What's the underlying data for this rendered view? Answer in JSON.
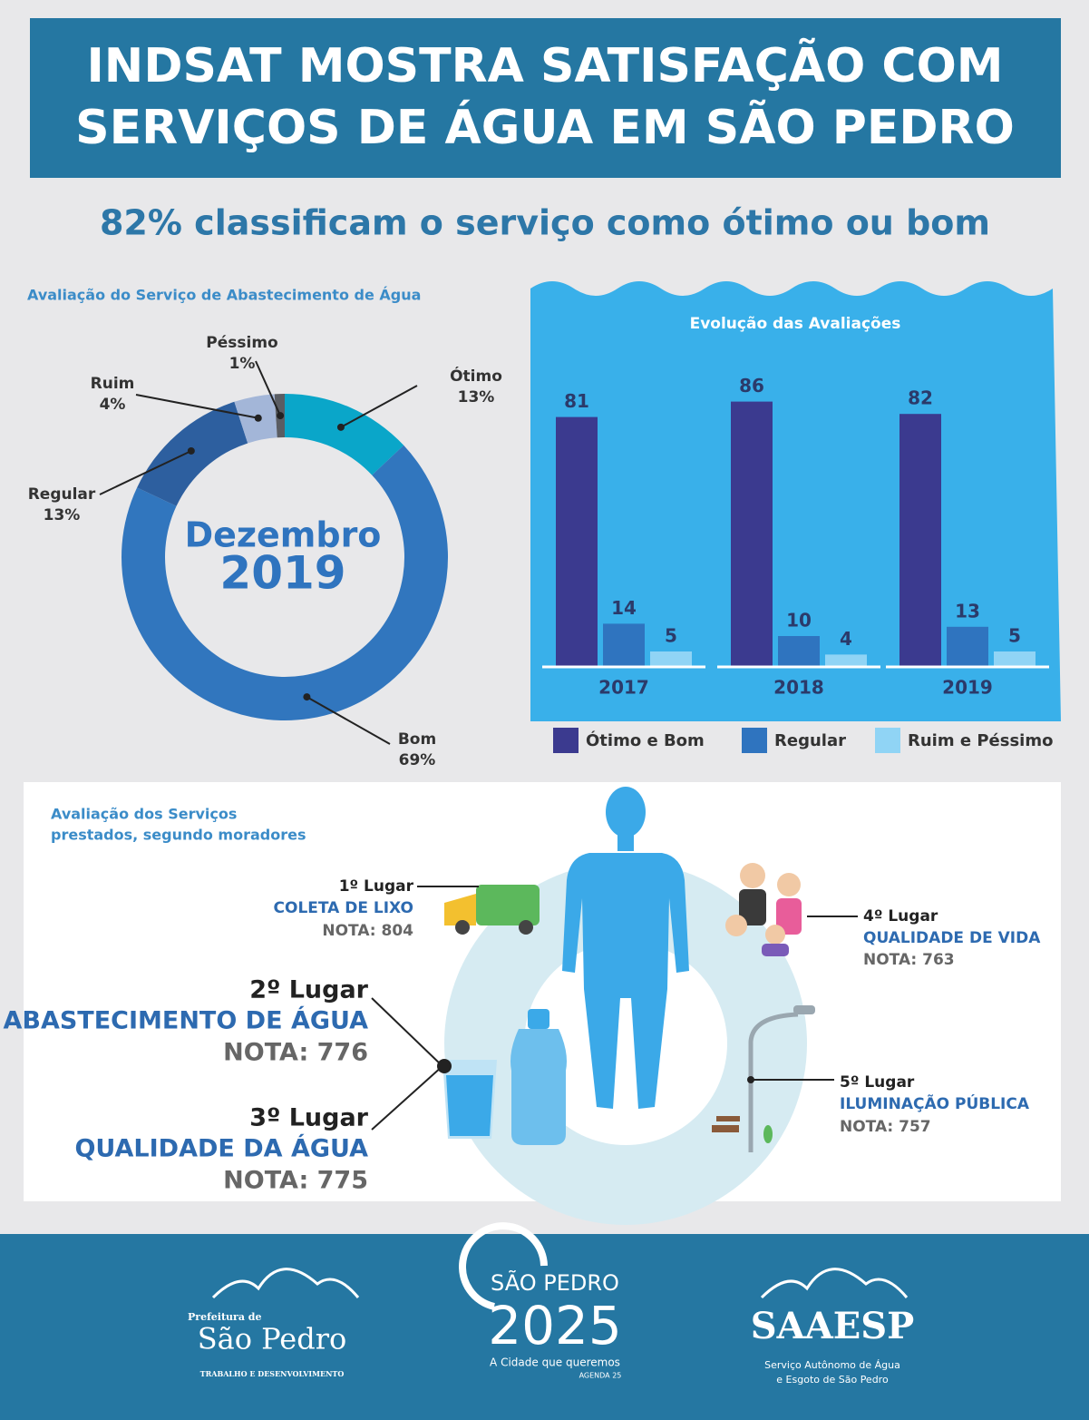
{
  "header": {
    "title": [
      "INDSAT MOSTRA SATISFAÇÃO COM",
      "SERVIÇOS DE ÁGUA EM SÃO PEDRO"
    ],
    "subtitle": "82% classificam o serviço como ótimo ou bom"
  },
  "chart_data": [
    {
      "type": "donut",
      "title": "Avaliação do Serviço de Abastecimento de Água",
      "center_label": [
        "Dezembro",
        "2019"
      ],
      "categories": [
        "Ótimo",
        "Bom",
        "Regular",
        "Ruim",
        "Péssimo"
      ],
      "values": [
        13,
        69,
        13,
        4,
        1
      ],
      "value_labels": [
        "13%",
        "69%",
        "13%",
        "4%",
        "1%"
      ],
      "colors": [
        "#0aa6c9",
        "#3176be",
        "#2d5f9f",
        "#a3b6d8",
        "#5a5d63"
      ]
    },
    {
      "type": "bar",
      "title": "Evolução das Avaliações",
      "categories": [
        "2017",
        "2018",
        "2019"
      ],
      "series": [
        {
          "name": "Ótimo e Bom",
          "color": "#3b3a8f",
          "values": [
            81,
            86,
            82
          ]
        },
        {
          "name": "Regular",
          "color": "#2f74bf",
          "values": [
            14,
            10,
            13
          ]
        },
        {
          "name": "Ruim e Péssimo",
          "color": "#90d4f5",
          "values": [
            5,
            4,
            5
          ]
        }
      ],
      "ylim": [
        0,
        100
      ]
    }
  ],
  "ranking": {
    "title": [
      "Avaliação dos Serviços",
      "prestados, segundo moradores"
    ],
    "items": [
      {
        "place": "1º Lugar",
        "service": "COLETA DE LIXO",
        "score": "NOTA: 804"
      },
      {
        "place": "2º Lugar",
        "service": "ABASTECIMENTO DE ÁGUA",
        "score": "NOTA: 776"
      },
      {
        "place": "3º Lugar",
        "service": "QUALIDADE DA ÁGUA",
        "score": "NOTA: 775"
      },
      {
        "place": "4º Lugar",
        "service": "QUALIDADE DE VIDA",
        "score": "NOTA: 763"
      },
      {
        "place": "5º Lugar",
        "service": "ILUMINAÇÃO PÚBLICA",
        "score": "NOTA: 757"
      }
    ]
  },
  "footer": {
    "logo1": [
      "Prefeitura de",
      "São Pedro",
      "TRABALHO E DESENVOLVIMENTO"
    ],
    "logo2": [
      "SÃO PEDRO",
      "2025",
      "A Cidade que queremos",
      "AGENDA 25"
    ],
    "logo3": [
      "SAAESP",
      "Serviço Autônomo de Água",
      "e Esgoto de São Pedro"
    ]
  }
}
